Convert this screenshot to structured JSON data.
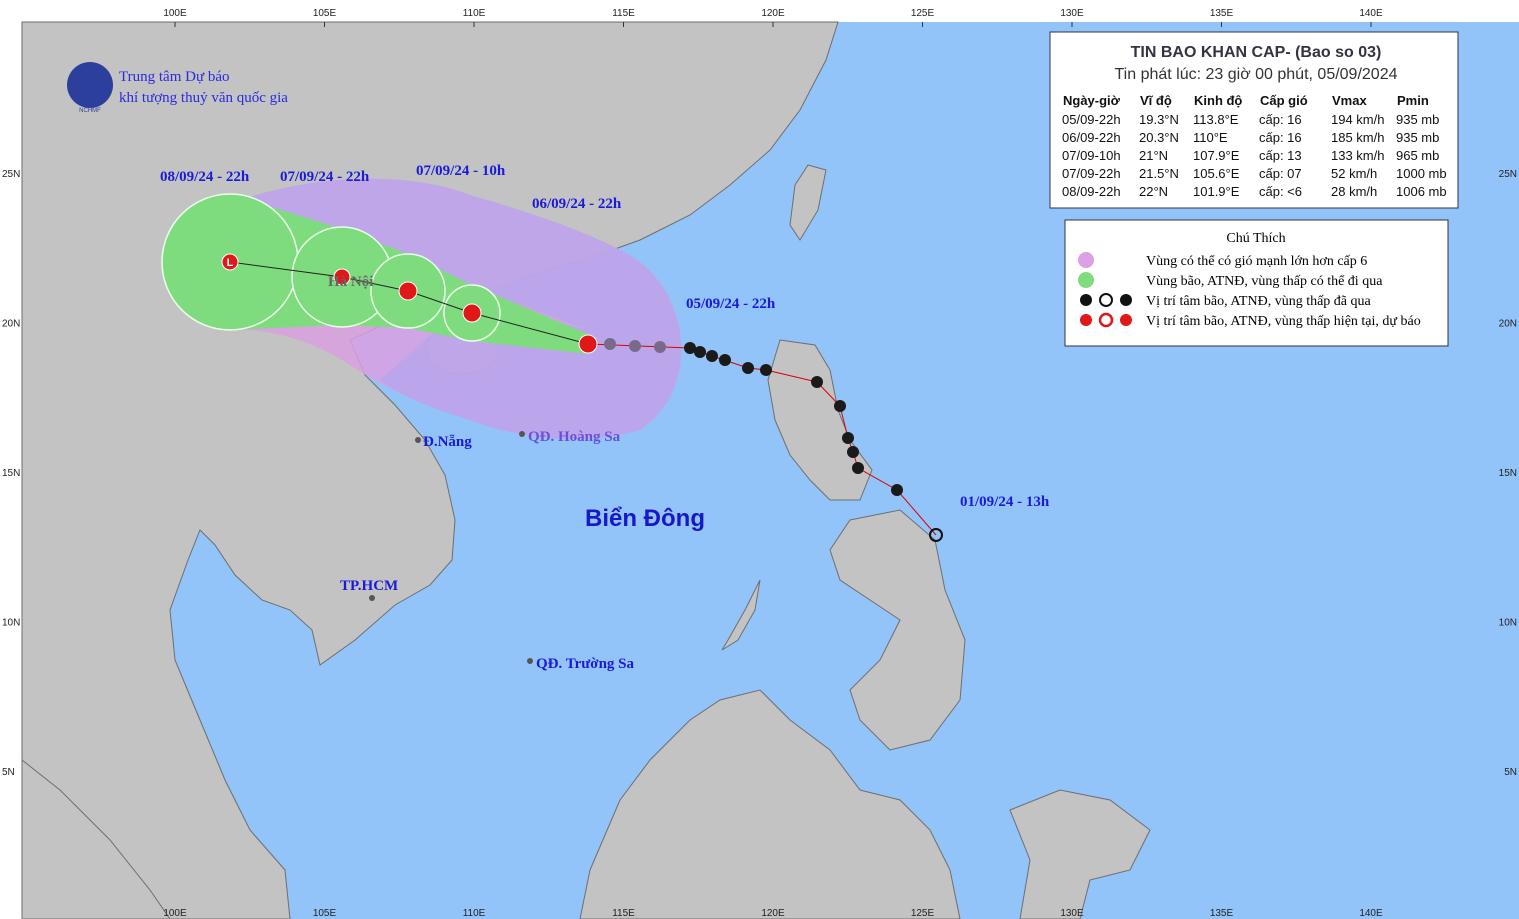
{
  "header": {
    "org_line1": "Trung tâm Dự báo",
    "org_line2": "khí tượng thuỷ văn quốc gia",
    "logo": "NCHMF"
  },
  "bulletin": {
    "title": "TIN BAO KHAN CAP- (Bao so 03)",
    "issued": "Tin phát lúc: 23 giờ 00 phút, 05/09/2024",
    "columns": [
      "Ngày-giờ",
      "Vĩ độ",
      "Kinh độ",
      "Cấp gió",
      "Vmax",
      "Pmin"
    ],
    "rows": [
      [
        "05/09-22h",
        "19.3°N",
        "113.8°E",
        "cấp: 16",
        "194 km/h",
        "935 mb"
      ],
      [
        "06/09-22h",
        "20.3°N",
        "110°E",
        "cấp: 16",
        "185 km/h",
        "935 mb"
      ],
      [
        "07/09-10h",
        "21°N",
        "107.9°E",
        "cấp: 13",
        "133 km/h",
        "965 mb"
      ],
      [
        "07/09-22h",
        "21.5°N",
        "105.6°E",
        "cấp: 07",
        "52 km/h",
        "1000 mb"
      ],
      [
        "08/09-22h",
        "22°N",
        "101.9°E",
        "cấp: <6",
        "28 km/h",
        "1006 mb"
      ]
    ]
  },
  "legend": {
    "title": "Chú Thích",
    "items": [
      "Vùng có thể có gió mạnh lớn hơn cấp 6",
      "Vùng bão, ATNĐ, vùng thấp có thể đi qua",
      "Vị trí tâm bão, ATNĐ, vùng thấp đã qua",
      "Vị trí tâm bão, ATNĐ, vùng thấp hiện tại, dự báo"
    ]
  },
  "map": {
    "lon_labels": [
      "100E",
      "105E",
      "110E",
      "115E",
      "120E",
      "125E",
      "130E",
      "135E",
      "140E"
    ],
    "lat_labels": [
      "25N",
      "20N",
      "15N",
      "10N",
      "5N"
    ],
    "labels": [
      "08/09/24 - 22h",
      "07/09/24 - 22h",
      "07/09/24 - 10h",
      "06/09/24 - 22h",
      "05/09/24 - 22h",
      "01/09/24 - 13h",
      "Hà Nội",
      "Đ.Nẵng",
      "QĐ. Hoàng Sa",
      "TP.HCM",
      "QĐ. Trường Sa",
      "Biển Đông"
    ]
  }
}
